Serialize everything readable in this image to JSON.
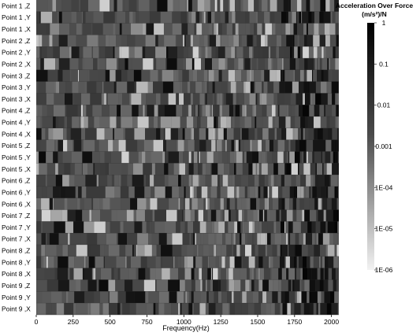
{
  "chart_data": {
    "type": "heatmap",
    "xlabel": "Frequency(Hz)",
    "xlim": [
      0,
      2050
    ],
    "x_ticks": [
      0,
      250,
      500,
      750,
      1000,
      1250,
      1500,
      1750,
      2000
    ],
    "rows": [
      "Point 1 ,Z",
      "Point 1 ,Y",
      "Point 1 ,X",
      "Point 2 ,Z",
      "Point 2 ,Y",
      "Point 2 ,X",
      "Point 3 ,Z",
      "Point 3 ,Y",
      "Point 3 ,X",
      "Point 4 ,Z",
      "Point 4 ,Y",
      "Point 4 ,X",
      "Point 5 ,Z",
      "Point 5 ,Y",
      "Point 5 ,X",
      "Point 6 ,Z",
      "Point 6 ,Y",
      "Point 6 ,X",
      "Point 7 ,Z",
      "Point 7 ,Y",
      "Point 7 ,X",
      "Point 8 ,Z",
      "Point 8 ,Y",
      "Point 8 ,X",
      "Point 9 ,Z",
      "Point 9 ,Y",
      "Point 9 ,X"
    ],
    "colorbar": {
      "title": "Acceleration Over Force",
      "unit": "(m/s²)/N",
      "scale": "log",
      "labels": [
        "1",
        "0.1",
        "0.01",
        "0.001",
        "1E-04",
        "1E-05",
        "1E-06"
      ],
      "colors": {
        "high": "#000000",
        "mid": "#4a4a4a",
        "low": "#f2f2f2"
      }
    },
    "grid": false,
    "legend_position": "right"
  }
}
